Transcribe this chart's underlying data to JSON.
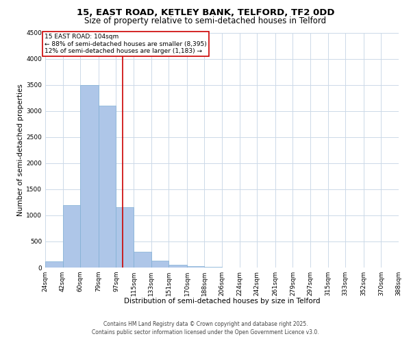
{
  "title1": "15, EAST ROAD, KETLEY BANK, TELFORD, TF2 0DD",
  "title2": "Size of property relative to semi-detached houses in Telford",
  "xlabel": "Distribution of semi-detached houses by size in Telford",
  "ylabel": "Number of semi-detached properties",
  "footnote1": "Contains HM Land Registry data © Crown copyright and database right 2025.",
  "footnote2": "Contains public sector information licensed under the Open Government Licence v3.0.",
  "annotation_title": "15 EAST ROAD: 104sqm",
  "annotation_line1": "← 88% of semi-detached houses are smaller (8,395)",
  "annotation_line2": "12% of semi-detached houses are larger (1,183) →",
  "bar_left_edges": [
    24,
    42,
    60,
    79,
    97,
    115,
    133,
    151,
    170,
    188,
    206,
    224,
    242,
    261,
    279,
    297,
    315,
    333,
    352,
    370
  ],
  "bar_heights": [
    120,
    1200,
    3500,
    3100,
    1150,
    300,
    130,
    50,
    30,
    10,
    5,
    0,
    0,
    0,
    0,
    0,
    0,
    0,
    0,
    0
  ],
  "bar_color": "#aec6e8",
  "bar_edgecolor": "#7fafd4",
  "vline_color": "#cc0000",
  "vline_x": 104,
  "ylim": [
    0,
    4500
  ],
  "yticks": [
    0,
    500,
    1000,
    1500,
    2000,
    2500,
    3000,
    3500,
    4000,
    4500
  ],
  "xtick_labels": [
    "24sqm",
    "42sqm",
    "60sqm",
    "79sqm",
    "97sqm",
    "115sqm",
    "133sqm",
    "151sqm",
    "170sqm",
    "188sqm",
    "206sqm",
    "224sqm",
    "242sqm",
    "261sqm",
    "279sqm",
    "297sqm",
    "315sqm",
    "333sqm",
    "352sqm",
    "370sqm",
    "388sqm"
  ],
  "background_color": "#ffffff",
  "grid_color": "#ccd9e8",
  "annotation_box_color": "#cc0000",
  "title1_fontsize": 9.5,
  "title2_fontsize": 8.5,
  "axis_label_fontsize": 7.5,
  "tick_fontsize": 6.5,
  "annotation_fontsize": 6.5,
  "footnote_fontsize": 5.5
}
